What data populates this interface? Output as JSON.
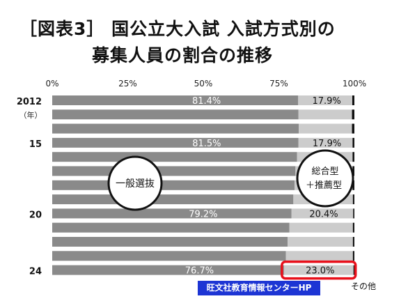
{
  "title": {
    "line1": "［図表3］ 国公立大入試  入試方式別の",
    "line2": "募集人員の割合の推移"
  },
  "chart_data": {
    "type": "bar",
    "orientation": "horizontal",
    "stacked": true,
    "xlim": [
      0,
      100
    ],
    "x_ticks": [
      "0%",
      "25%",
      "50%",
      "75%",
      "100%"
    ],
    "y_labels": [
      {
        "row": 0,
        "text": "2012"
      },
      {
        "row": 0,
        "text": "（年）",
        "sub": true
      },
      {
        "row": 3,
        "text": "15"
      },
      {
        "row": 8,
        "text": "20"
      },
      {
        "row": 12,
        "text": "24"
      }
    ],
    "rows": [
      {
        "general": 81.4,
        "comp": 17.9,
        "general_label": "81.4%",
        "comp_label": "17.9%"
      },
      {
        "general": 81.5,
        "comp": 17.7
      },
      {
        "general": 81.6,
        "comp": 17.6
      },
      {
        "general": 81.5,
        "comp": 17.9,
        "general_label": "81.5%",
        "comp_label": "17.9%"
      },
      {
        "general": 81.0,
        "comp": 18.4
      },
      {
        "general": 80.5,
        "comp": 18.9
      },
      {
        "general": 80.2,
        "comp": 19.2
      },
      {
        "general": 79.8,
        "comp": 19.7
      },
      {
        "general": 79.2,
        "comp": 20.4,
        "general_label": "79.2%",
        "comp_label": "20.4%"
      },
      {
        "general": 78.5,
        "comp": 21.0
      },
      {
        "general": 77.9,
        "comp": 21.6
      },
      {
        "general": 77.3,
        "comp": 22.2
      },
      {
        "general": 76.7,
        "comp": 23.0,
        "general_label": "76.7%",
        "comp_label": "23.0%"
      }
    ],
    "series": [
      {
        "name": "一般選抜",
        "color": "#8a8a8a"
      },
      {
        "name_lines": [
          "総合型",
          "＋推薦型"
        ],
        "color": "#cccccc"
      },
      {
        "name": "その他",
        "color": "#111111"
      }
    ],
    "highlight_row": 12,
    "highlight_color": "#e8101b"
  },
  "credit": "旺文社教育情報センターHP"
}
